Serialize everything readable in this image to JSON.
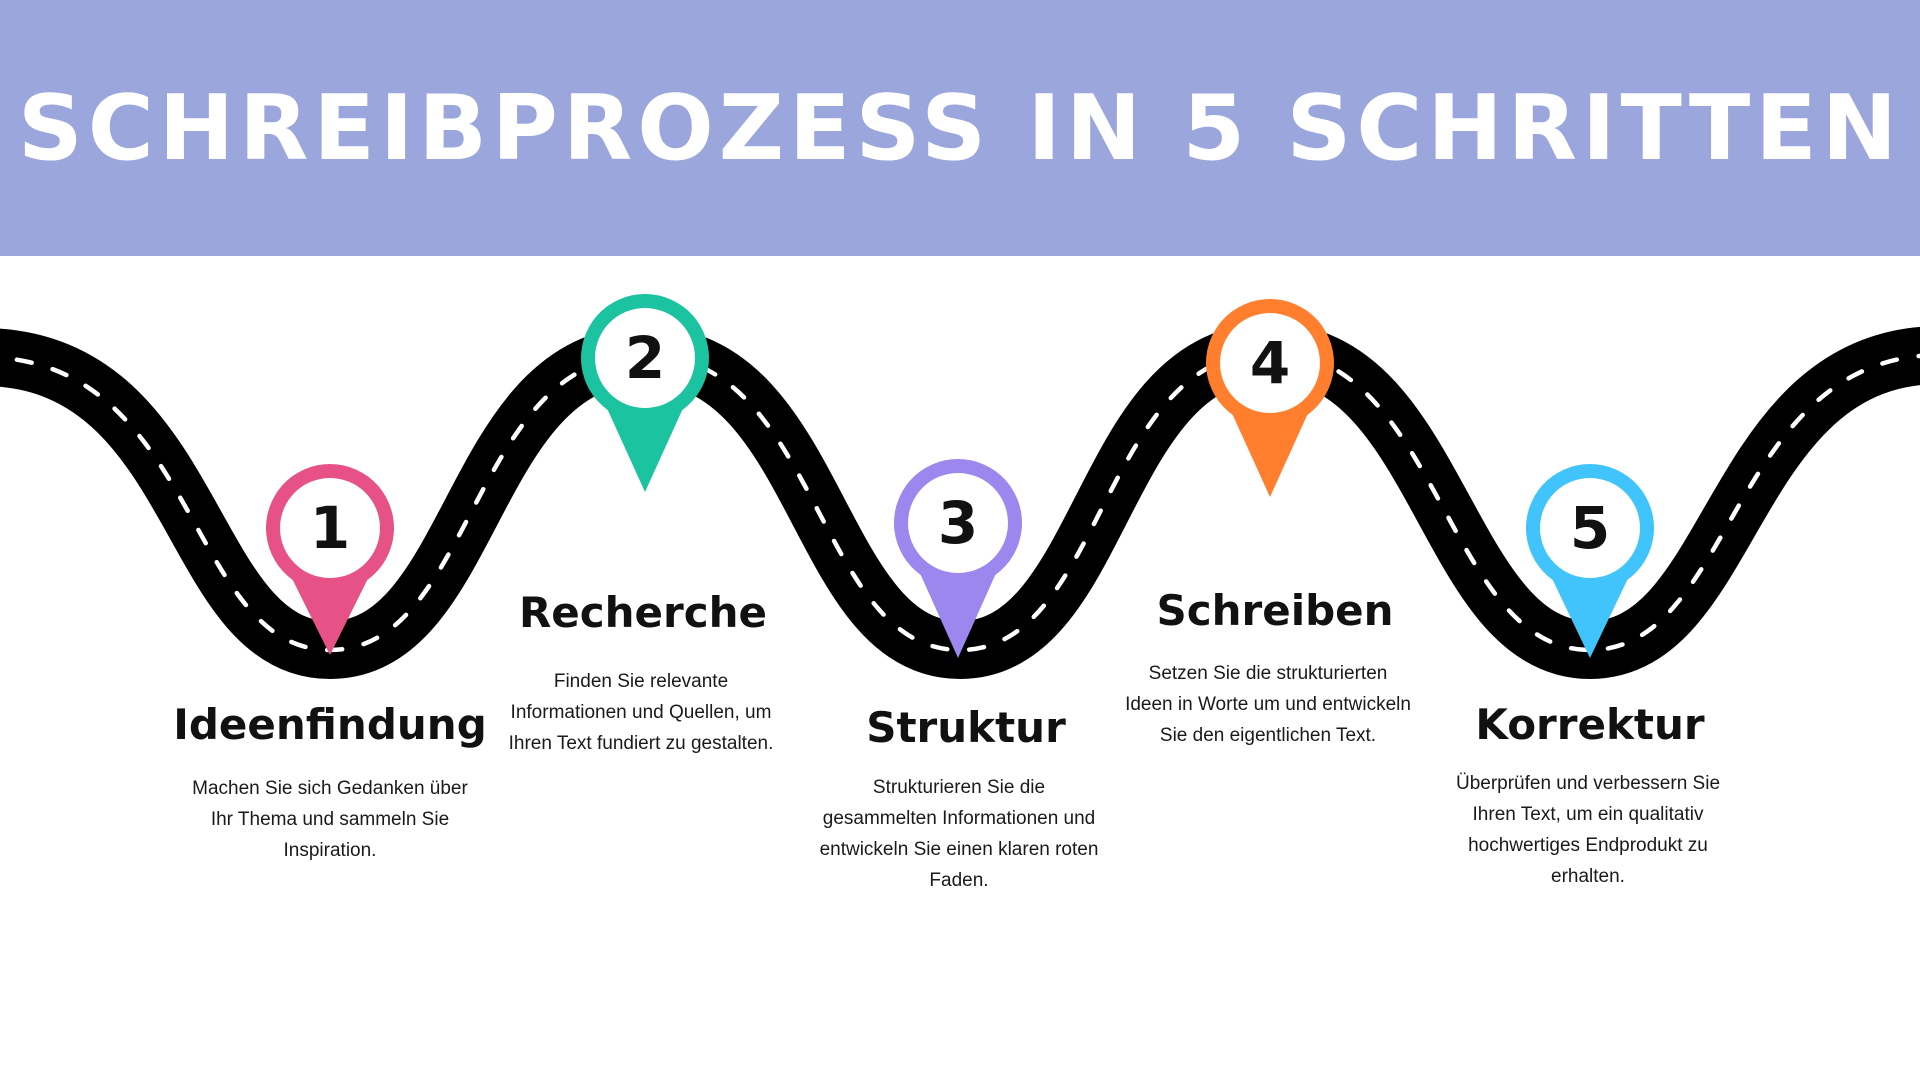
{
  "title": "SCHREIBPROZESS IN 5 SCHRITTEN",
  "colors": {
    "band": "#9ba6dc",
    "road": "#000000",
    "lane_marks": "#ffffff"
  },
  "steps": [
    {
      "number": "1",
      "title": "Ideenfindung",
      "description": "Machen Sie sich Gedanken über Ihr Thema und sammeln Sie Inspiration.",
      "pin_color": "#e65286"
    },
    {
      "number": "2",
      "title": "Recherche",
      "description": "Finden Sie relevante Informationen und Quellen, um Ihren Text fundiert zu gestalten.",
      "pin_color": "#1bc3a0"
    },
    {
      "number": "3",
      "title": "Struktur",
      "description": "Strukturieren Sie die gesammelten Informationen und entwickeln Sie einen klaren roten Faden.",
      "pin_color": "#9b87ee"
    },
    {
      "number": "4",
      "title": "Schreiben",
      "description": "Setzen Sie die strukturierten Ideen in Worte um und entwickeln Sie den eigentlichen Text.",
      "pin_color": "#ff7f2e"
    },
    {
      "number": "5",
      "title": "Korrektur",
      "description": "Überprüfen und verbessern Sie Ihren Text, um ein qualitativ hochwertiges Endprodukt zu erhalten.",
      "pin_color": "#40c4fb"
    }
  ]
}
